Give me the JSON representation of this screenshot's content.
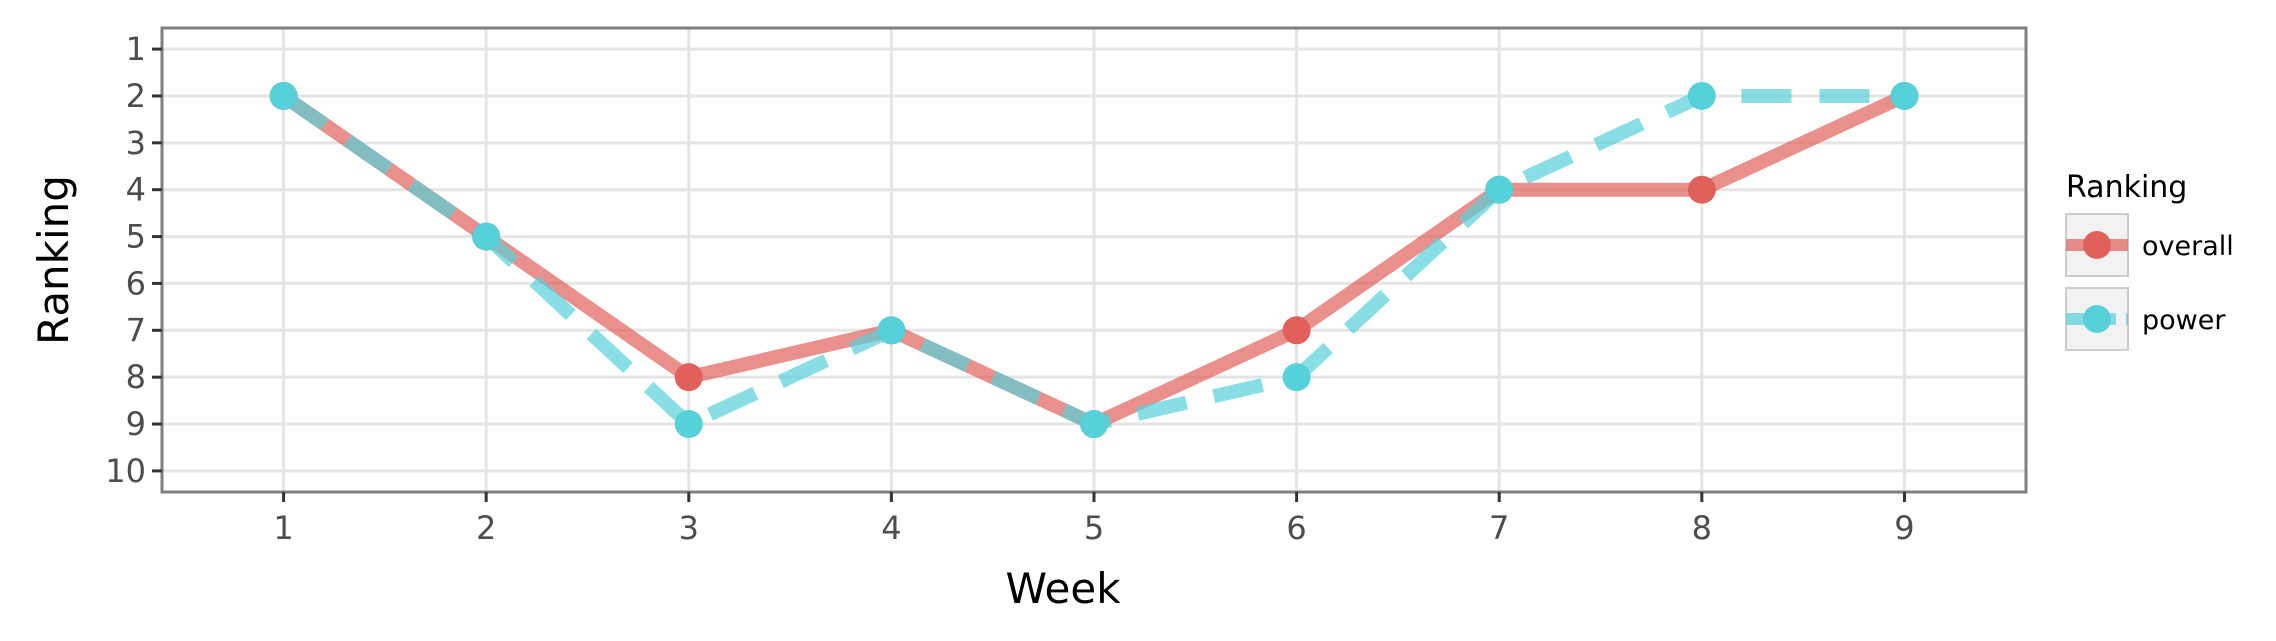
{
  "chart_data": {
    "type": "line",
    "title": "",
    "xlabel": "Week",
    "ylabel": "Ranking",
    "x": [
      1,
      2,
      3,
      4,
      5,
      6,
      7,
      8,
      9
    ],
    "x_ticks": [
      "1",
      "2",
      "3",
      "4",
      "5",
      "6",
      "7",
      "8",
      "9"
    ],
    "y_ticks": [
      "1",
      "2",
      "3",
      "4",
      "5",
      "6",
      "7",
      "8",
      "9",
      "10"
    ],
    "xlim": [
      0.4,
      9.6
    ],
    "ylim": [
      10.45,
      0.55
    ],
    "y_reversed": true,
    "grid": true,
    "legend": {
      "title": "Ranking",
      "position": "right"
    },
    "series": [
      {
        "name": "overall",
        "values": [
          2,
          5,
          8,
          7,
          9,
          7,
          4,
          4,
          2
        ],
        "color": "#e0615b",
        "line_style": "solid"
      },
      {
        "name": "power",
        "values": [
          2,
          5,
          9,
          7,
          9,
          8,
          4,
          2,
          2
        ],
        "color": "#56d0d9",
        "line_style": "dashed"
      }
    ]
  }
}
